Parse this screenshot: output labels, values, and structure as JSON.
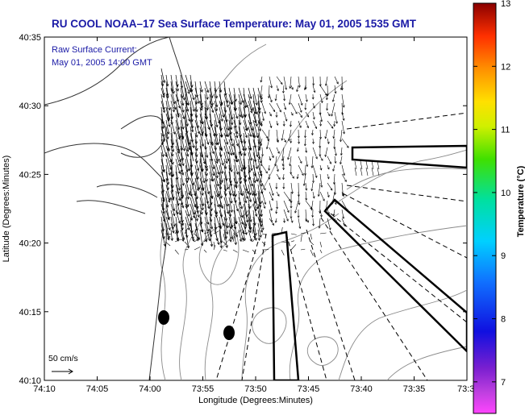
{
  "title": "RU COOL   NOAA–17  Sea Surface Temperature:  May 01, 2005 1535 GMT",
  "annotation": {
    "line1": "Raw Surface Current:",
    "line2": "May 01, 2005 14:00 GMT"
  },
  "scale_label": "50 cm/s",
  "axes": {
    "xlabel": "Longitude (Degrees:Minutes)",
    "ylabel": "Latitude (Degrees:Minutes)",
    "x_ticks": [
      "74:10",
      "74:05",
      "74:00",
      "73:55",
      "73:50",
      "73:45",
      "73:40",
      "73:35",
      "73:3"
    ],
    "y_ticks": [
      "40:35",
      "40:30",
      "40:25",
      "40:20",
      "40:15",
      "40:10"
    ]
  },
  "colorbar": {
    "title": "Temperature (°C)",
    "ticks": [
      "13",
      "12",
      "11",
      "10",
      "9",
      "8",
      "7"
    ],
    "range": [
      6.5,
      13
    ]
  },
  "colors": {
    "title_text": "#1a1aa6",
    "contour": "#8a8a8a",
    "coast": "#333333",
    "vector": "#000000"
  }
}
